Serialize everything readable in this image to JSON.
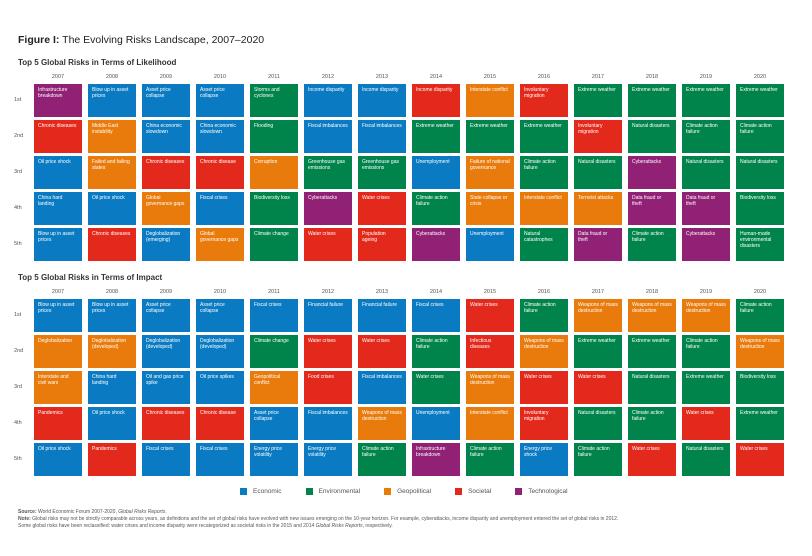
{
  "figure": {
    "label": "Figure I:",
    "title": "The Evolving Risks Landscape, 2007–2020"
  },
  "chart_data": {
    "type": "table",
    "title": "The Evolving Risks Landscape, 2007–2020",
    "years": [
      "2007",
      "2008",
      "2009",
      "2010",
      "2011",
      "2012",
      "2013",
      "2014",
      "2015",
      "2016",
      "2017",
      "2018",
      "2019",
      "2020"
    ],
    "ranks": [
      "1st",
      "2nd",
      "3rd",
      "4th",
      "5th"
    ],
    "categories": {
      "E": {
        "name": "Economic",
        "color": "#0a7bc2"
      },
      "V": {
        "name": "Environmental",
        "color": "#00844c"
      },
      "G": {
        "name": "Geopolitical",
        "color": "#e87b0c"
      },
      "S": {
        "name": "Societal",
        "color": "#e3291b"
      },
      "T": {
        "name": "Technological",
        "color": "#902175"
      }
    },
    "panels": [
      {
        "title": "Top 5 Global Risks in Terms of Likelihood",
        "columns": [
          [
            [
              "Infrastructure breakdown",
              "T"
            ],
            [
              "Chronic diseases",
              "S"
            ],
            [
              "Oil price shock",
              "E"
            ],
            [
              "China hard landing",
              "E"
            ],
            [
              "Blow up in asset prices",
              "E"
            ]
          ],
          [
            [
              "Blow up in asset prices",
              "E"
            ],
            [
              "Middle East instability",
              "G"
            ],
            [
              "Failed and failing states",
              "G"
            ],
            [
              "Oil price shock",
              "E"
            ],
            [
              "Chronic diseases",
              "S"
            ]
          ],
          [
            [
              "Asset price collapse",
              "E"
            ],
            [
              "China economic slowdown",
              "E"
            ],
            [
              "Chronic diseases",
              "S"
            ],
            [
              "Global governance gaps",
              "G"
            ],
            [
              "Deglobalization (emerging)",
              "E"
            ]
          ],
          [
            [
              "Asset price collapse",
              "E"
            ],
            [
              "China economic slowdown",
              "E"
            ],
            [
              "Chronic disease",
              "S"
            ],
            [
              "Fiscal crises",
              "E"
            ],
            [
              "Global governance gaps",
              "G"
            ]
          ],
          [
            [
              "Storms and cyclones",
              "V"
            ],
            [
              "Flooding",
              "V"
            ],
            [
              "Corruption",
              "G"
            ],
            [
              "Biodiversity loss",
              "V"
            ],
            [
              "Climate change",
              "V"
            ]
          ],
          [
            [
              "Income disparity",
              "E"
            ],
            [
              "Fiscal imbalances",
              "E"
            ],
            [
              "Greenhouse gas emissions",
              "V"
            ],
            [
              "Cyberattacks",
              "T"
            ],
            [
              "Water crises",
              "S"
            ]
          ],
          [
            [
              "Income disparity",
              "E"
            ],
            [
              "Fiscal imbalances",
              "E"
            ],
            [
              "Greenhouse gas emissions",
              "V"
            ],
            [
              "Water crises",
              "S"
            ],
            [
              "Population ageing",
              "S"
            ]
          ],
          [
            [
              "Income disparity",
              "S"
            ],
            [
              "Extreme weather",
              "V"
            ],
            [
              "Unemployment",
              "E"
            ],
            [
              "Climate action failure",
              "V"
            ],
            [
              "Cyberattacks",
              "T"
            ]
          ],
          [
            [
              "Interstate conflict",
              "G"
            ],
            [
              "Extreme weather",
              "V"
            ],
            [
              "Failure of national governance",
              "G"
            ],
            [
              "State collapse or crisis",
              "G"
            ],
            [
              "Unemployment",
              "E"
            ]
          ],
          [
            [
              "Involuntary migration",
              "S"
            ],
            [
              "Extreme weather",
              "V"
            ],
            [
              "Climate action failure",
              "V"
            ],
            [
              "Interstate conflict",
              "G"
            ],
            [
              "Natural catastrophes",
              "V"
            ]
          ],
          [
            [
              "Extreme weather",
              "V"
            ],
            [
              "Involuntary migration",
              "S"
            ],
            [
              "Natural disasters",
              "V"
            ],
            [
              "Terrorist attacks",
              "G"
            ],
            [
              "Data fraud or theft",
              "T"
            ]
          ],
          [
            [
              "Extreme weather",
              "V"
            ],
            [
              "Natural disasters",
              "V"
            ],
            [
              "Cyberattacks",
              "T"
            ],
            [
              "Data fraud or theft",
              "T"
            ],
            [
              "Climate action failure",
              "V"
            ]
          ],
          [
            [
              "Extreme weather",
              "V"
            ],
            [
              "Climate action failure",
              "V"
            ],
            [
              "Natural disasters",
              "V"
            ],
            [
              "Data fraud or theft",
              "T"
            ],
            [
              "Cyberattacks",
              "T"
            ]
          ],
          [
            [
              "Extreme weather",
              "V"
            ],
            [
              "Climate action failure",
              "V"
            ],
            [
              "Natural disasters",
              "V"
            ],
            [
              "Biodiversity loss",
              "V"
            ],
            [
              "Human-made environmental disasters",
              "V"
            ]
          ]
        ]
      },
      {
        "title": "Top 5 Global Risks in Terms of Impact",
        "columns": [
          [
            [
              "Blow up in asset prices",
              "E"
            ],
            [
              "Deglobalization",
              "G"
            ],
            [
              "Interstate and civil wars",
              "G"
            ],
            [
              "Pandemics",
              "S"
            ],
            [
              "Oil price shock",
              "E"
            ]
          ],
          [
            [
              "Blow up in asset prices",
              "E"
            ],
            [
              "Deglobalization (developed)",
              "G"
            ],
            [
              "China hard landing",
              "E"
            ],
            [
              "Oil price shock",
              "E"
            ],
            [
              "Pandemics",
              "S"
            ]
          ],
          [
            [
              "Asset price collapse",
              "E"
            ],
            [
              "Deglobalization (developed)",
              "E"
            ],
            [
              "Oil and gas price spike",
              "E"
            ],
            [
              "Chronic diseases",
              "S"
            ],
            [
              "Fiscal crises",
              "E"
            ]
          ],
          [
            [
              "Asset price collapse",
              "E"
            ],
            [
              "Deglobalization (developed)",
              "E"
            ],
            [
              "Oil price spikes",
              "E"
            ],
            [
              "Chronic disease",
              "S"
            ],
            [
              "Fiscal crises",
              "E"
            ]
          ],
          [
            [
              "Fiscal crises",
              "E"
            ],
            [
              "Climate change",
              "V"
            ],
            [
              "Geopolitical conflict",
              "G"
            ],
            [
              "Asset price collapse",
              "E"
            ],
            [
              "Energy price volatility",
              "E"
            ]
          ],
          [
            [
              "Financial failure",
              "E"
            ],
            [
              "Water crises",
              "S"
            ],
            [
              "Food crises",
              "S"
            ],
            [
              "Fiscal imbalances",
              "E"
            ],
            [
              "Energy price volatility",
              "E"
            ]
          ],
          [
            [
              "Financial failure",
              "E"
            ],
            [
              "Water crises",
              "S"
            ],
            [
              "Fiscal imbalances",
              "E"
            ],
            [
              "Weapons of mass destruction",
              "G"
            ],
            [
              "Climate action failure",
              "V"
            ]
          ],
          [
            [
              "Fiscal crises",
              "E"
            ],
            [
              "Climate action failure",
              "V"
            ],
            [
              "Water crises",
              "V"
            ],
            [
              "Unemployment",
              "E"
            ],
            [
              "Infrastructure breakdown",
              "T"
            ]
          ],
          [
            [
              "Water crises",
              "S"
            ],
            [
              "Infectious diseases",
              "S"
            ],
            [
              "Weapons of mass destruction",
              "G"
            ],
            [
              "Interstate conflict",
              "G"
            ],
            [
              "Climate action failure",
              "V"
            ]
          ],
          [
            [
              "Climate action failure",
              "V"
            ],
            [
              "Weapons of mass destruction",
              "G"
            ],
            [
              "Water crises",
              "S"
            ],
            [
              "Involuntary migration",
              "S"
            ],
            [
              "Energy price shock",
              "E"
            ]
          ],
          [
            [
              "Weapons of mass destruction",
              "G"
            ],
            [
              "Extreme weather",
              "V"
            ],
            [
              "Water crises",
              "S"
            ],
            [
              "Natural disasters",
              "V"
            ],
            [
              "Climate action failure",
              "V"
            ]
          ],
          [
            [
              "Weapons of mass destruction",
              "G"
            ],
            [
              "Extreme weather",
              "V"
            ],
            [
              "Natural disasters",
              "V"
            ],
            [
              "Climate action failure",
              "V"
            ],
            [
              "Water crises",
              "S"
            ]
          ],
          [
            [
              "Weapons of mass destruction",
              "G"
            ],
            [
              "Climate action failure",
              "V"
            ],
            [
              "Extreme weather",
              "V"
            ],
            [
              "Water crises",
              "S"
            ],
            [
              "Natural disasters",
              "V"
            ]
          ],
          [
            [
              "Climate action failure",
              "V"
            ],
            [
              "Weapons of mass destruction",
              "G"
            ],
            [
              "Biodiversity loss",
              "V"
            ],
            [
              "Extreme weather",
              "V"
            ],
            [
              "Water crises",
              "S"
            ]
          ]
        ]
      }
    ],
    "legend": [
      "Economic",
      "Environmental",
      "Geopolitical",
      "Societal",
      "Technological"
    ],
    "legend_position": "bottom-center"
  },
  "footnotes": {
    "source_label": "Source:",
    "source_text": "World Economic Forum 2007-2020, ",
    "source_italic": "Global Risks Reports",
    "note_label": "Note:",
    "note_text": "Global risks may not be strictly comparable across years, as definitions and the set of global risks have evolved with new issues emerging on the 10-year horizon. For example, cyberattacks, income disparity and unemployment entered the set of global risks in 2012.",
    "note_line2": "Some global risks have been reclassified: water crises and income disparity were recategorized as societal risks in the 2015 and 2014 ",
    "note_line2_italic": "Global Risks Reports",
    "note_line2_end": ", respectively."
  }
}
